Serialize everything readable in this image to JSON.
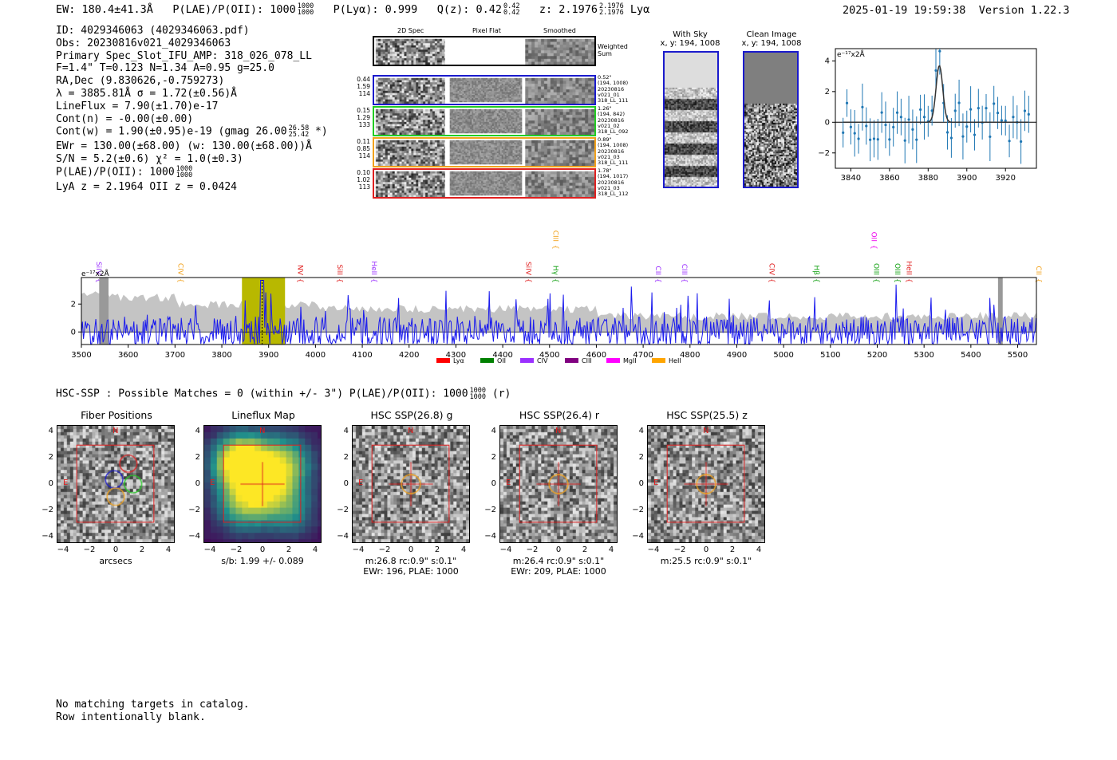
{
  "header": {
    "ew": "EW: 180.4±41.3Å",
    "plae_label": "P(LAE)/P(OII): 1000",
    "plae_hi": "1000",
    "plae_lo": "1000",
    "plya": "P(Lyα): 0.999",
    "qz_label": "Q(z): 0.42",
    "qz_hi": "0.42",
    "qz_lo": "0.42",
    "z_label": "z: 2.1976",
    "z_hi": "2.1976",
    "z_lo": "2.1976",
    "z_line": "Lyα",
    "timestamp": "2025-01-19 19:59:38",
    "version": "Version 1.22.3"
  },
  "info": {
    "id": "ID: 4029346063 (4029346063.pdf)",
    "obs": "Obs: 20230816v021_4029346063",
    "primary": "Primary Spec_Slot_IFU_AMP: 318_026_078_LL",
    "fparams": "F=1.4\"  T=0.123  N=1.34  A=0.95  g=25.0",
    "radec": "RA,Dec (9.830626,-0.759273)",
    "lambda": "λ = 3885.81Å  σ = 1.72(±0.56)Å",
    "lineflux": "LineFlux = 7.90(±1.70)e-17",
    "contn": "Cont(n) = -0.00(±0.00)",
    "contw": "Cont(w) = 1.90(±0.95)e-19 (gmag 26.00",
    "contw_hi": "26.58",
    "contw_lo": "25.42",
    "contw_end": "*)",
    "ewr": "EWr = 130.00(±68.00) (w: 130.00(±68.00))Å",
    "sn": "S/N = 5.2(±0.6)  χ² = 1.0(±0.3)",
    "plae": "P(LAE)/P(OII): 1000",
    "plae_hi": "1000",
    "plae_lo": "1000",
    "lyaz": "LyA z = 2.1964  OII z = 0.0424"
  },
  "cutouts": {
    "col_titles": [
      "2D Spec",
      "Pixel Flat",
      "Smoothed"
    ],
    "weighted_label": "Weighted Sum",
    "rows": [
      {
        "left": [
          "0.44",
          "1.59",
          "114"
        ],
        "right": [
          "0.52\"",
          "(194, 1008)",
          "20230816",
          "v021_01",
          "318_LL_111"
        ],
        "color": "#1a1acc"
      },
      {
        "left": [
          "0.15",
          "1.29",
          "133"
        ],
        "right": [
          "1.26\"",
          "(194, 842)",
          "20230816",
          "v021_02",
          "318_LL_092"
        ],
        "color": "#22cc22"
      },
      {
        "left": [
          "0.11",
          "0.85",
          "114"
        ],
        "right": [
          "0.89\"",
          "(194, 1008)",
          "20230816",
          "v021_03",
          "318_LL_111"
        ],
        "color": "#f2a21c"
      },
      {
        "left": [
          "0.10",
          "1.02",
          "113"
        ],
        "right": [
          "1.78\"",
          "(194, 1017)",
          "20230816",
          "v021_03",
          "318_LL_112"
        ],
        "color": "#e02020"
      }
    ]
  },
  "sky": {
    "with_sky_title": "With Sky",
    "with_sky_xy": "x, y: 194, 1008",
    "clean_title": "Clean Image",
    "clean_xy": "x, y: 194, 1008"
  },
  "zoom_plot": {
    "unit_label": "e⁻¹⁷x2Å",
    "x_ticks": [
      "3840",
      "3860",
      "3880",
      "3900",
      "3920"
    ],
    "y_ticks": [
      "4",
      "2",
      "0",
      "−2"
    ]
  },
  "spectrum": {
    "unit_label": "e⁻¹⁷x2Å",
    "x_ticks": [
      "3500",
      "3600",
      "3700",
      "3800",
      "3900",
      "4000",
      "4100",
      "4200",
      "4300",
      "4400",
      "4500",
      "4600",
      "4700",
      "4800",
      "4900",
      "5000",
      "5100",
      "5200",
      "5300",
      "5400",
      "5500"
    ],
    "y_ticks": [
      "2",
      "0"
    ],
    "lines": [
      {
        "name": "SiIV",
        "color": "#9b30ff"
      },
      {
        "name": "CIV",
        "color": "#f2a21c"
      },
      {
        "name": "NV",
        "color": "#e02020"
      },
      {
        "name": "SiII",
        "color": "#e02020"
      },
      {
        "name": "HeII",
        "color": "#9b30ff"
      },
      {
        "name": "SiIV",
        "color": "#e02020"
      },
      {
        "name": "CIII",
        "color": "#f2a21c"
      },
      {
        "name": "Hγ",
        "color": "#11a011"
      },
      {
        "name": "CII",
        "color": "#9b30ff"
      },
      {
        "name": "CIII",
        "color": "#9b30ff"
      },
      {
        "name": "CIV",
        "color": "#e02020"
      },
      {
        "name": "Hβ",
        "color": "#11a011"
      },
      {
        "name": "OII",
        "color": "#ee00ee"
      },
      {
        "name": "OIII",
        "color": "#11a011"
      },
      {
        "name": "OIII",
        "color": "#11a011"
      },
      {
        "name": "HeII",
        "color": "#e02020"
      },
      {
        "name": "CII",
        "color": "#f2a21c"
      }
    ],
    "legend": [
      {
        "name": "Lyα",
        "color": "#ff0000"
      },
      {
        "name": "OII",
        "color": "#008000"
      },
      {
        "name": "CIV",
        "color": "#9b30ff"
      },
      {
        "name": "CIII",
        "color": "#800080"
      },
      {
        "name": "MgII",
        "color": "#ff00ff"
      },
      {
        "name": "HeII",
        "color": "#ffa500"
      }
    ]
  },
  "hsc": {
    "summary": "HSC-SSP : Possible Matches = 0 (within +/- 3\")  P(LAE)/P(OII): 1000",
    "summary_hi": "1000",
    "summary_lo": "1000",
    "summary_end": "(r)",
    "axis_ticks": [
      "−4",
      "−2",
      "0",
      "2",
      "4"
    ],
    "axis_yticks": [
      "4",
      "2",
      "0",
      "−2",
      "−4"
    ],
    "compass_n": "N",
    "compass_e": "E",
    "panels": [
      {
        "title": "Fiber Positions",
        "caption1": "arcsecs",
        "caption2": ""
      },
      {
        "title": "Lineflux Map",
        "caption1": "s/b: 1.99 +/- 0.089",
        "caption2": ""
      },
      {
        "title": "HSC SSP(26.8) g",
        "caption1": "m:26.8 rc:0.9\"  s:0.1\"",
        "caption2": "EWr: 196, PLAE: 1000"
      },
      {
        "title": "HSC SSP(26.4) r",
        "caption1": "m:26.4 rc:0.9\"  s:0.1\"",
        "caption2": "EWr: 209, PLAE: 1000"
      },
      {
        "title": "HSC SSP(25.5) z",
        "caption1": "m:25.5 rc:0.9\"  s:0.1\"",
        "caption2": ""
      }
    ]
  },
  "footer": {
    "line1": "No matching targets in catalog.",
    "line2": "Row intentionally blank."
  }
}
